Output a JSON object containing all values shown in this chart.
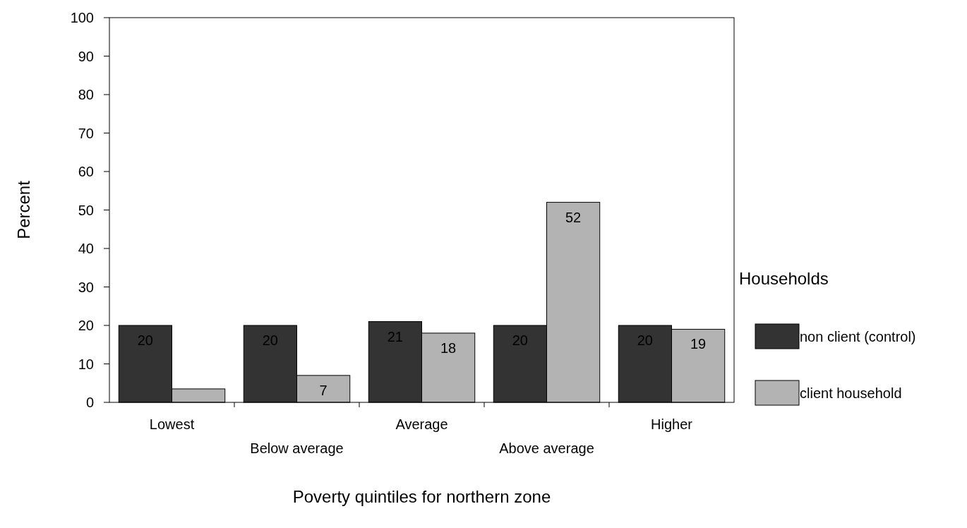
{
  "chart_data": {
    "type": "bar",
    "xlabel": "Poverty quintiles for northern zone",
    "ylabel": "Percent",
    "legend_title": "Households",
    "legend": "right",
    "categories": [
      "Lowest",
      "Below average",
      "Average",
      "Above average",
      "Higher"
    ],
    "series": [
      {
        "name": "non client (control)",
        "color": "#333333",
        "values": [
          20,
          20,
          21,
          20,
          20
        ],
        "value_labels": [
          "20",
          "20",
          "21",
          "20",
          "20"
        ]
      },
      {
        "name": "client household",
        "color": "#b3b3b3",
        "values": [
          3.5,
          7,
          18,
          52,
          19
        ],
        "value_labels": [
          null,
          "7",
          "18",
          "52",
          "19"
        ]
      }
    ],
    "ylim": [
      0,
      100
    ],
    "yticks": [
      0,
      10,
      20,
      30,
      40,
      50,
      60,
      70,
      80,
      90,
      100
    ],
    "grid": false
  }
}
